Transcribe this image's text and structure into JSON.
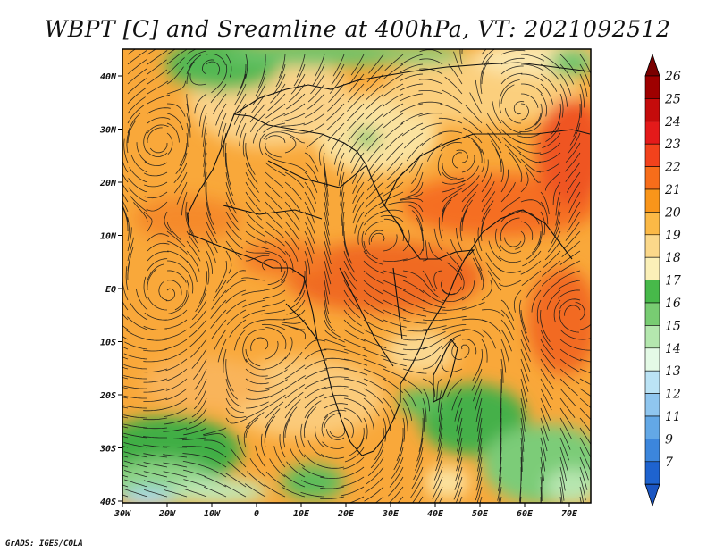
{
  "title": "WBPT [C] and Sreamline at 400hPa, VT: 2021092512",
  "credit": "GrADS: IGES/COLA",
  "lat_ticks": [
    "40N",
    "30N",
    "20N",
    "10N",
    "EQ",
    "10S",
    "20S",
    "30S",
    "40S"
  ],
  "lon_ticks": [
    "30W",
    "20W",
    "10W",
    "0",
    "10E",
    "20E",
    "30E",
    "40E",
    "50E",
    "60E",
    "70E"
  ],
  "colorbar": {
    "labels": [
      "26",
      "25",
      "24",
      "23",
      "22",
      "21",
      "20",
      "19",
      "18",
      "17",
      "16",
      "15",
      "14",
      "13",
      "12",
      "11",
      "9",
      "7"
    ],
    "colors": [
      "#9e0000",
      "#c40b0b",
      "#e41a1a",
      "#f2421c",
      "#f76d1a",
      "#f9951a",
      "#fbb946",
      "#fbd88a",
      "#fbf0b8",
      "#47b94a",
      "#78cc72",
      "#b4e7ae",
      "#e4fae6",
      "#bbe3f5",
      "#8fc6ef",
      "#63a8e6",
      "#3c86dc",
      "#1e63cf"
    ],
    "top_arrow_color": "#7a0000",
    "bottom_arrow_color": "#1a55c2"
  },
  "map": {
    "lon_range": [
      -30,
      75
    ],
    "lat_range": [
      -40,
      45
    ]
  }
}
